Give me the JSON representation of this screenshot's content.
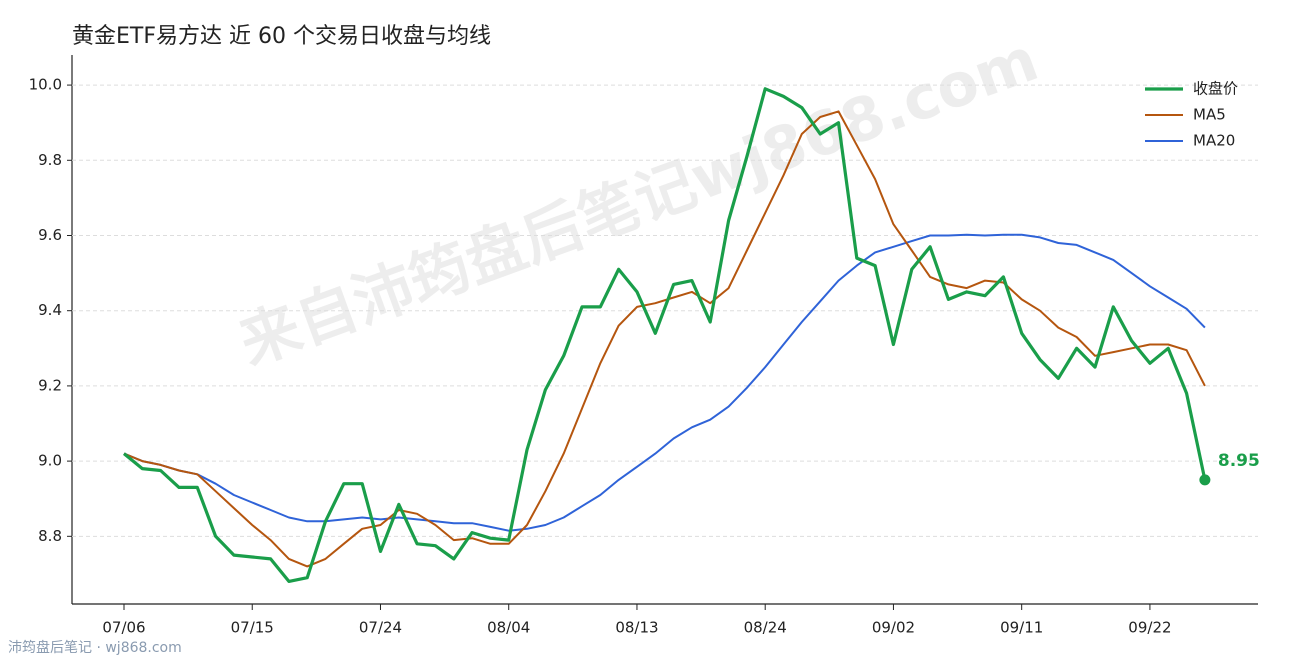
{
  "chart_data": {
    "type": "line",
    "title": "黄金ETF易方达 近 60 个交易日收盘与均线",
    "watermark": "来自沛筠盘后笔记wj868.com",
    "footer": "沛筠盘后笔记 · wj868.com",
    "categories": [
      "07/06",
      null,
      null,
      null,
      null,
      null,
      null,
      "07/15",
      null,
      null,
      null,
      null,
      null,
      null,
      "07/24",
      null,
      null,
      null,
      null,
      null,
      null,
      "08/04",
      null,
      null,
      null,
      null,
      null,
      null,
      "08/13",
      null,
      null,
      null,
      null,
      null,
      null,
      "08/24",
      null,
      null,
      null,
      null,
      null,
      null,
      "09/02",
      null,
      null,
      null,
      null,
      null,
      null,
      "09/11",
      null,
      null,
      null,
      null,
      null,
      null,
      "09/22",
      null,
      null,
      null
    ],
    "series": [
      {
        "name": "收盘价",
        "color": "#1a9e4a",
        "values": [
          9.02,
          8.98,
          8.975,
          8.93,
          8.93,
          8.8,
          8.75,
          8.745,
          8.74,
          8.68,
          8.69,
          8.84,
          8.94,
          8.94,
          8.76,
          8.885,
          8.78,
          8.775,
          8.74,
          8.81,
          8.795,
          8.79,
          9.03,
          9.19,
          9.28,
          9.41,
          9.41,
          9.51,
          9.45,
          9.34,
          9.47,
          9.48,
          9.37,
          9.64,
          9.81,
          9.99,
          9.97,
          9.94,
          9.87,
          9.9,
          9.54,
          9.52,
          9.31,
          9.51,
          9.57,
          9.43,
          9.45,
          9.44,
          9.49,
          9.34,
          9.27,
          9.22,
          9.3,
          9.25,
          9.41,
          9.32,
          9.26,
          9.3,
          9.18,
          8.95
        ]
      },
      {
        "name": "MA5",
        "color": "#b5560f",
        "values": [
          9.02,
          9.0,
          8.99,
          8.975,
          8.965,
          8.92,
          8.875,
          8.83,
          8.79,
          8.74,
          8.72,
          8.74,
          8.78,
          8.82,
          8.83,
          8.87,
          8.86,
          8.83,
          8.79,
          8.795,
          8.78,
          8.78,
          8.83,
          8.92,
          9.02,
          9.14,
          9.26,
          9.36,
          9.41,
          9.42,
          9.435,
          9.45,
          9.42,
          9.46,
          9.56,
          9.66,
          9.76,
          9.87,
          9.915,
          9.93,
          9.84,
          9.75,
          9.63,
          9.56,
          9.49,
          9.47,
          9.46,
          9.48,
          9.475,
          9.43,
          9.4,
          9.355,
          9.33,
          9.28,
          9.29,
          9.3,
          9.31,
          9.31,
          9.295,
          9.2
        ]
      },
      {
        "name": "MA20",
        "color": "#2f63d8",
        "values": [
          9.02,
          9.0,
          8.99,
          8.975,
          8.965,
          8.94,
          8.91,
          8.89,
          8.87,
          8.85,
          8.84,
          8.84,
          8.845,
          8.85,
          8.845,
          8.85,
          8.845,
          8.84,
          8.835,
          8.835,
          8.825,
          8.815,
          8.82,
          8.83,
          8.85,
          8.88,
          8.91,
          8.95,
          8.985,
          9.02,
          9.06,
          9.09,
          9.11,
          9.145,
          9.195,
          9.25,
          9.31,
          9.37,
          9.425,
          9.48,
          9.52,
          9.555,
          9.57,
          9.585,
          9.6,
          9.6,
          9.602,
          9.6,
          9.602,
          9.602,
          9.595,
          9.58,
          9.575,
          9.555,
          9.535,
          9.5,
          9.465,
          9.435,
          9.405,
          9.355
        ]
      }
    ],
    "ylim": [
      8.62,
      10.08
    ],
    "yticks": [
      8.8,
      {
        "value": 9,
        "label": "9.0"
      },
      9.2,
      9.4,
      9.6,
      9.8,
      {
        "value": 10,
        "label": "10.0"
      }
    ],
    "grid": true,
    "legend": "upper right"
  }
}
